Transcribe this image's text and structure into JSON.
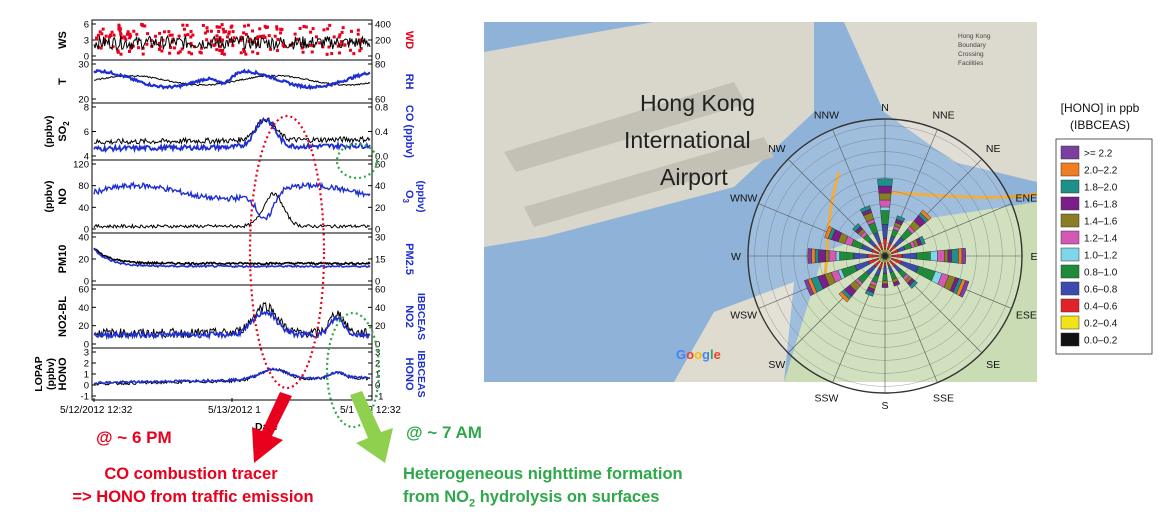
{
  "colors": {
    "black_series": "#000000",
    "blue_series": "#1f2fd0",
    "red_series": "#e8001c",
    "red_annotation": "#e8001c",
    "green_annotation": "#2ea84a",
    "arrow_green": "#8fd14f"
  },
  "left_panel": {
    "x_tick_labels": [
      "5/12/2012 12:32",
      "5/13/2012 1",
      "5/1",
      "12 12:32"
    ],
    "x_axis_label": "Date",
    "panels": [
      {
        "left_label": "WS",
        "left_ticks": [
          "6",
          "3",
          "0"
        ],
        "right_label": "WD",
        "right_ticks": [
          "400",
          "200",
          "0"
        ],
        "right_label_color": "red"
      },
      {
        "left_label": "T",
        "left_ticks": [
          "30",
          "20"
        ],
        "right_label": "RH",
        "right_ticks": [
          "80",
          "60"
        ]
      },
      {
        "left_label": "SO",
        "left_sub": "2",
        "left_unit": "(ppbv)",
        "left_ticks": [
          "8",
          "6",
          "4"
        ],
        "right_label": "CO (ppbv)",
        "right_ticks": [
          "0.8",
          "0.4",
          "0.0"
        ]
      },
      {
        "left_label": "NO",
        "left_unit": "(ppbv)",
        "left_ticks": [
          "120",
          "80",
          "40",
          "0"
        ],
        "right_label": "O",
        "right_sub": "3",
        "right_unit": "(ppbv)",
        "right_ticks": [
          "60",
          "40",
          "20",
          "0"
        ]
      },
      {
        "left_label": "PM10",
        "left_ticks": [
          "40",
          "20",
          "0"
        ],
        "right_label": "PM2.5",
        "right_ticks": [
          "30",
          "15",
          "0"
        ]
      },
      {
        "left_label": "NO2-BL",
        "left_ticks": [
          "60",
          "40",
          "20",
          "0"
        ],
        "right_label": "NO2",
        "right_unit": "IBBCEAS",
        "right_ticks": [
          "60",
          "40",
          "20",
          "0"
        ]
      },
      {
        "left_label": "HONO",
        "left_unit": "LOPAP",
        "left_unit2": "(ppbv)",
        "left_ticks": [
          "3",
          "2",
          "1",
          "0",
          "-1"
        ],
        "right_label": "HONO",
        "right_unit": "IBBCEAS",
        "right_ticks": [
          "3",
          "2",
          "1",
          "0",
          "-1"
        ]
      }
    ]
  },
  "annotations": {
    "pm_time": "@ ~ 6 PM",
    "am_time": "@ ~ 7 AM",
    "red_line1": "CO combustion tracer",
    "red_line2": "=> HONO from traffic emission",
    "green_line1": "Heterogeneous  nighttime formation",
    "green_line2_pre": "from NO",
    "green_line2_sub": "2",
    "green_line2_post": " hydrolysis on surfaces"
  },
  "map": {
    "title_lines": [
      "Hong Kong",
      "International",
      "Airport"
    ],
    "brand": "Google",
    "corner_text": [
      "Hong Kong",
      "Boundary",
      "Crossing",
      "Facilities"
    ]
  },
  "chart_data": [
    {
      "type": "line",
      "title": "",
      "xlabel": "Date",
      "x_ticks": [
        "5/12/2012 12:32",
        "5/13/2012 12:32",
        "5/14/2012 12:32"
      ],
      "panels": [
        {
          "left": "WS",
          "right": "WD",
          "left_range": [
            0,
            6
          ],
          "right_range": [
            0,
            400
          ]
        },
        {
          "left": "T",
          "right": "RH",
          "left_range": [
            20,
            35
          ],
          "right_range": [
            55,
            90
          ]
        },
        {
          "left": "SO2 (ppbv)",
          "right": "CO (ppbv)",
          "left_range": [
            2,
            9
          ],
          "right_range": [
            0.0,
            0.8
          ]
        },
        {
          "left": "NO (ppbv)",
          "right": "O3 (ppbv)",
          "left_range": [
            0,
            120
          ],
          "right_range": [
            0,
            60
          ]
        },
        {
          "left": "PM10",
          "right": "PM2.5",
          "left_range": [
            0,
            45
          ],
          "right_range": [
            0,
            30
          ]
        },
        {
          "left": "NO2-BL",
          "right": "NO2 IBBCEAS",
          "left_range": [
            0,
            60
          ],
          "right_range": [
            0,
            60
          ]
        },
        {
          "left": "HONO LOPAP (ppbv)",
          "right": "HONO IBBCEAS",
          "left_range": [
            -1,
            3
          ],
          "right_range": [
            -1,
            3
          ]
        }
      ]
    },
    {
      "type": "bar",
      "subtype": "wind-rose",
      "title": "[HONO] in ppb (IBBCEAS)",
      "directions": [
        "N",
        "NNE",
        "NE",
        "ENE",
        "E",
        "ESE",
        "SE",
        "SSE",
        "S",
        "SSW",
        "SW",
        "WSW",
        "W",
        "WNW",
        "NW",
        "NNW"
      ],
      "legend": [
        {
          "label": ">= 2.2",
          "color": "#7b3fa0"
        },
        {
          "label": "2.0–2.2",
          "color": "#f07d22"
        },
        {
          "label": "1.8–2.0",
          "color": "#1f8f8a"
        },
        {
          "label": "1.6–1.8",
          "color": "#7a1f8a"
        },
        {
          "label": "1.4–1.6",
          "color": "#8a7d24"
        },
        {
          "label": "1.2–1.4",
          "color": "#d25ab4"
        },
        {
          "label": "1.0–1.2",
          "color": "#7fd6ea"
        },
        {
          "label": "0.8–1.0",
          "color": "#1f8a3a"
        },
        {
          "label": "0.6–0.8",
          "color": "#3d4bb0"
        },
        {
          "label": "0.4–0.6",
          "color": "#e2222a"
        },
        {
          "label": "0.2–0.4",
          "color": "#f2e21a"
        },
        {
          "label": "0.0–0.2",
          "color": "#111111"
        }
      ],
      "series_frequency_percent": {
        "N": [
          0,
          0,
          1,
          1,
          1,
          1,
          0.5,
          2,
          2,
          1.5,
          0.5,
          0.5
        ],
        "NNE": [
          0,
          0,
          0.5,
          0.5,
          0.5,
          0.5,
          0,
          1,
          1,
          1,
          0.5,
          0.5
        ],
        "NE": [
          0,
          0.5,
          0.5,
          1,
          1,
          0.5,
          0,
          1.5,
          1.5,
          1,
          0.5,
          0.5
        ],
        "ENE": [
          0,
          0,
          0.5,
          0.5,
          0.5,
          0.5,
          0,
          1,
          1,
          1,
          0.5,
          0.5
        ],
        "E": [
          0.5,
          0.5,
          1,
          0.5,
          0.5,
          1,
          1,
          2,
          2,
          1.5,
          0.5,
          0.5
        ],
        "ESE": [
          0.5,
          0.5,
          0.5,
          0.5,
          1,
          1,
          1,
          2.5,
          2.5,
          1.5,
          0.5,
          0.5
        ],
        "SE": [
          0,
          0,
          0.5,
          0.5,
          0.5,
          0.5,
          0,
          1,
          1,
          1,
          0.5,
          0.5
        ],
        "SSE": [
          0,
          0,
          0,
          0.5,
          0.5,
          0,
          0,
          1,
          1,
          0.5,
          0.5,
          0.5
        ],
        "S": [
          0,
          0,
          0,
          0.5,
          0.5,
          0,
          0,
          1,
          1,
          0.5,
          0.5,
          0.5
        ],
        "SSW": [
          0,
          0,
          0.5,
          0.5,
          0.5,
          0.5,
          0,
          1,
          1,
          1,
          0.5,
          0.5
        ],
        "SW": [
          0,
          0.5,
          0.5,
          1,
          1,
          0.5,
          0,
          1.5,
          1.5,
          1,
          0.5,
          0.5
        ],
        "WSW": [
          0.5,
          0.5,
          1,
          1,
          1,
          1,
          0.5,
          2,
          2,
          1.5,
          0.5,
          0.5
        ],
        "W": [
          0.5,
          0.5,
          0.5,
          1,
          0.5,
          1,
          0.5,
          2,
          2,
          1.5,
          0.5,
          0.5
        ],
        "WNW": [
          0,
          0.5,
          0.5,
          1,
          1,
          1,
          0,
          1.5,
          1.5,
          1,
          0.5,
          0.5
        ],
        "NW": [
          0,
          0,
          0.5,
          0.5,
          0.5,
          0.5,
          0,
          1,
          1,
          1,
          0.5,
          0.5
        ],
        "NNW": [
          0,
          0,
          0.5,
          0.5,
          1,
          0.5,
          0,
          1.5,
          1.5,
          1,
          0.5,
          0.5
        ]
      }
    }
  ]
}
